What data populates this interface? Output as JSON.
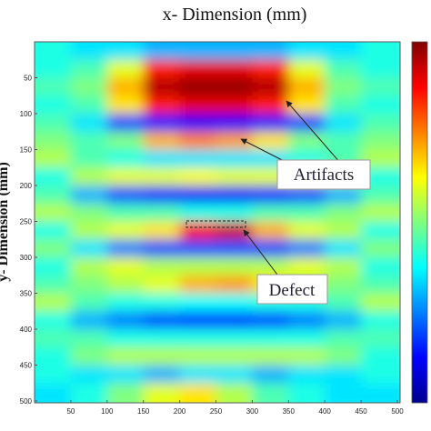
{
  "chart_data": {
    "type": "heatmap",
    "title": "x- Dimension (mm)",
    "y_label": "y- Dimension (mm)",
    "xlim": [
      0,
      500
    ],
    "ylim": [
      0,
      500
    ],
    "y_inverted": true,
    "xticks": [
      50,
      100,
      150,
      200,
      250,
      300,
      350,
      400,
      450,
      500
    ],
    "yticks": [
      50,
      100,
      150,
      200,
      250,
      300,
      350,
      400,
      450,
      500
    ],
    "colormap": "jet",
    "zlim": [
      0,
      1
    ],
    "z": [
      [
        0.4,
        0.35,
        0.35,
        0.3,
        0.3,
        0.3,
        0.3,
        0.35,
        0.35,
        0.4
      ],
      [
        0.4,
        0.45,
        0.6,
        0.85,
        0.9,
        0.9,
        0.85,
        0.6,
        0.45,
        0.4
      ],
      [
        0.45,
        0.5,
        0.7,
        0.95,
        0.98,
        0.98,
        0.95,
        0.7,
        0.5,
        0.45
      ],
      [
        0.4,
        0.45,
        0.65,
        0.85,
        0.9,
        0.9,
        0.85,
        0.65,
        0.45,
        0.4
      ],
      [
        0.45,
        0.35,
        0.2,
        0.15,
        0.12,
        0.12,
        0.15,
        0.2,
        0.35,
        0.45
      ],
      [
        0.5,
        0.45,
        0.5,
        0.7,
        0.75,
        0.72,
        0.65,
        0.5,
        0.45,
        0.5
      ],
      [
        0.55,
        0.45,
        0.4,
        0.35,
        0.35,
        0.35,
        0.35,
        0.4,
        0.45,
        0.55
      ],
      [
        0.4,
        0.55,
        0.6,
        0.6,
        0.62,
        0.6,
        0.6,
        0.6,
        0.55,
        0.4
      ],
      [
        0.45,
        0.3,
        0.2,
        0.15,
        0.12,
        0.12,
        0.15,
        0.2,
        0.3,
        0.45
      ],
      [
        0.55,
        0.5,
        0.45,
        0.45,
        0.4,
        0.4,
        0.45,
        0.45,
        0.5,
        0.55
      ],
      [
        0.4,
        0.55,
        0.6,
        0.65,
        0.88,
        0.92,
        0.7,
        0.6,
        0.55,
        0.4
      ],
      [
        0.5,
        0.35,
        0.25,
        0.2,
        0.2,
        0.2,
        0.2,
        0.25,
        0.35,
        0.5
      ],
      [
        0.4,
        0.55,
        0.6,
        0.55,
        0.55,
        0.55,
        0.55,
        0.6,
        0.55,
        0.4
      ],
      [
        0.45,
        0.5,
        0.55,
        0.6,
        0.7,
        0.72,
        0.65,
        0.55,
        0.5,
        0.45
      ],
      [
        0.55,
        0.45,
        0.4,
        0.4,
        0.38,
        0.38,
        0.4,
        0.4,
        0.45,
        0.55
      ],
      [
        0.4,
        0.3,
        0.25,
        0.2,
        0.18,
        0.18,
        0.2,
        0.25,
        0.3,
        0.4
      ],
      [
        0.45,
        0.45,
        0.4,
        0.4,
        0.4,
        0.4,
        0.4,
        0.4,
        0.45,
        0.45
      ],
      [
        0.4,
        0.5,
        0.55,
        0.55,
        0.55,
        0.55,
        0.55,
        0.55,
        0.5,
        0.4
      ],
      [
        0.4,
        0.35,
        0.35,
        0.3,
        0.35,
        0.35,
        0.3,
        0.35,
        0.35,
        0.4
      ],
      [
        0.35,
        0.4,
        0.5,
        0.6,
        0.65,
        0.55,
        0.45,
        0.4,
        0.35,
        0.35
      ]
    ],
    "annotations": [
      "Artifacts",
      "Defect"
    ]
  }
}
